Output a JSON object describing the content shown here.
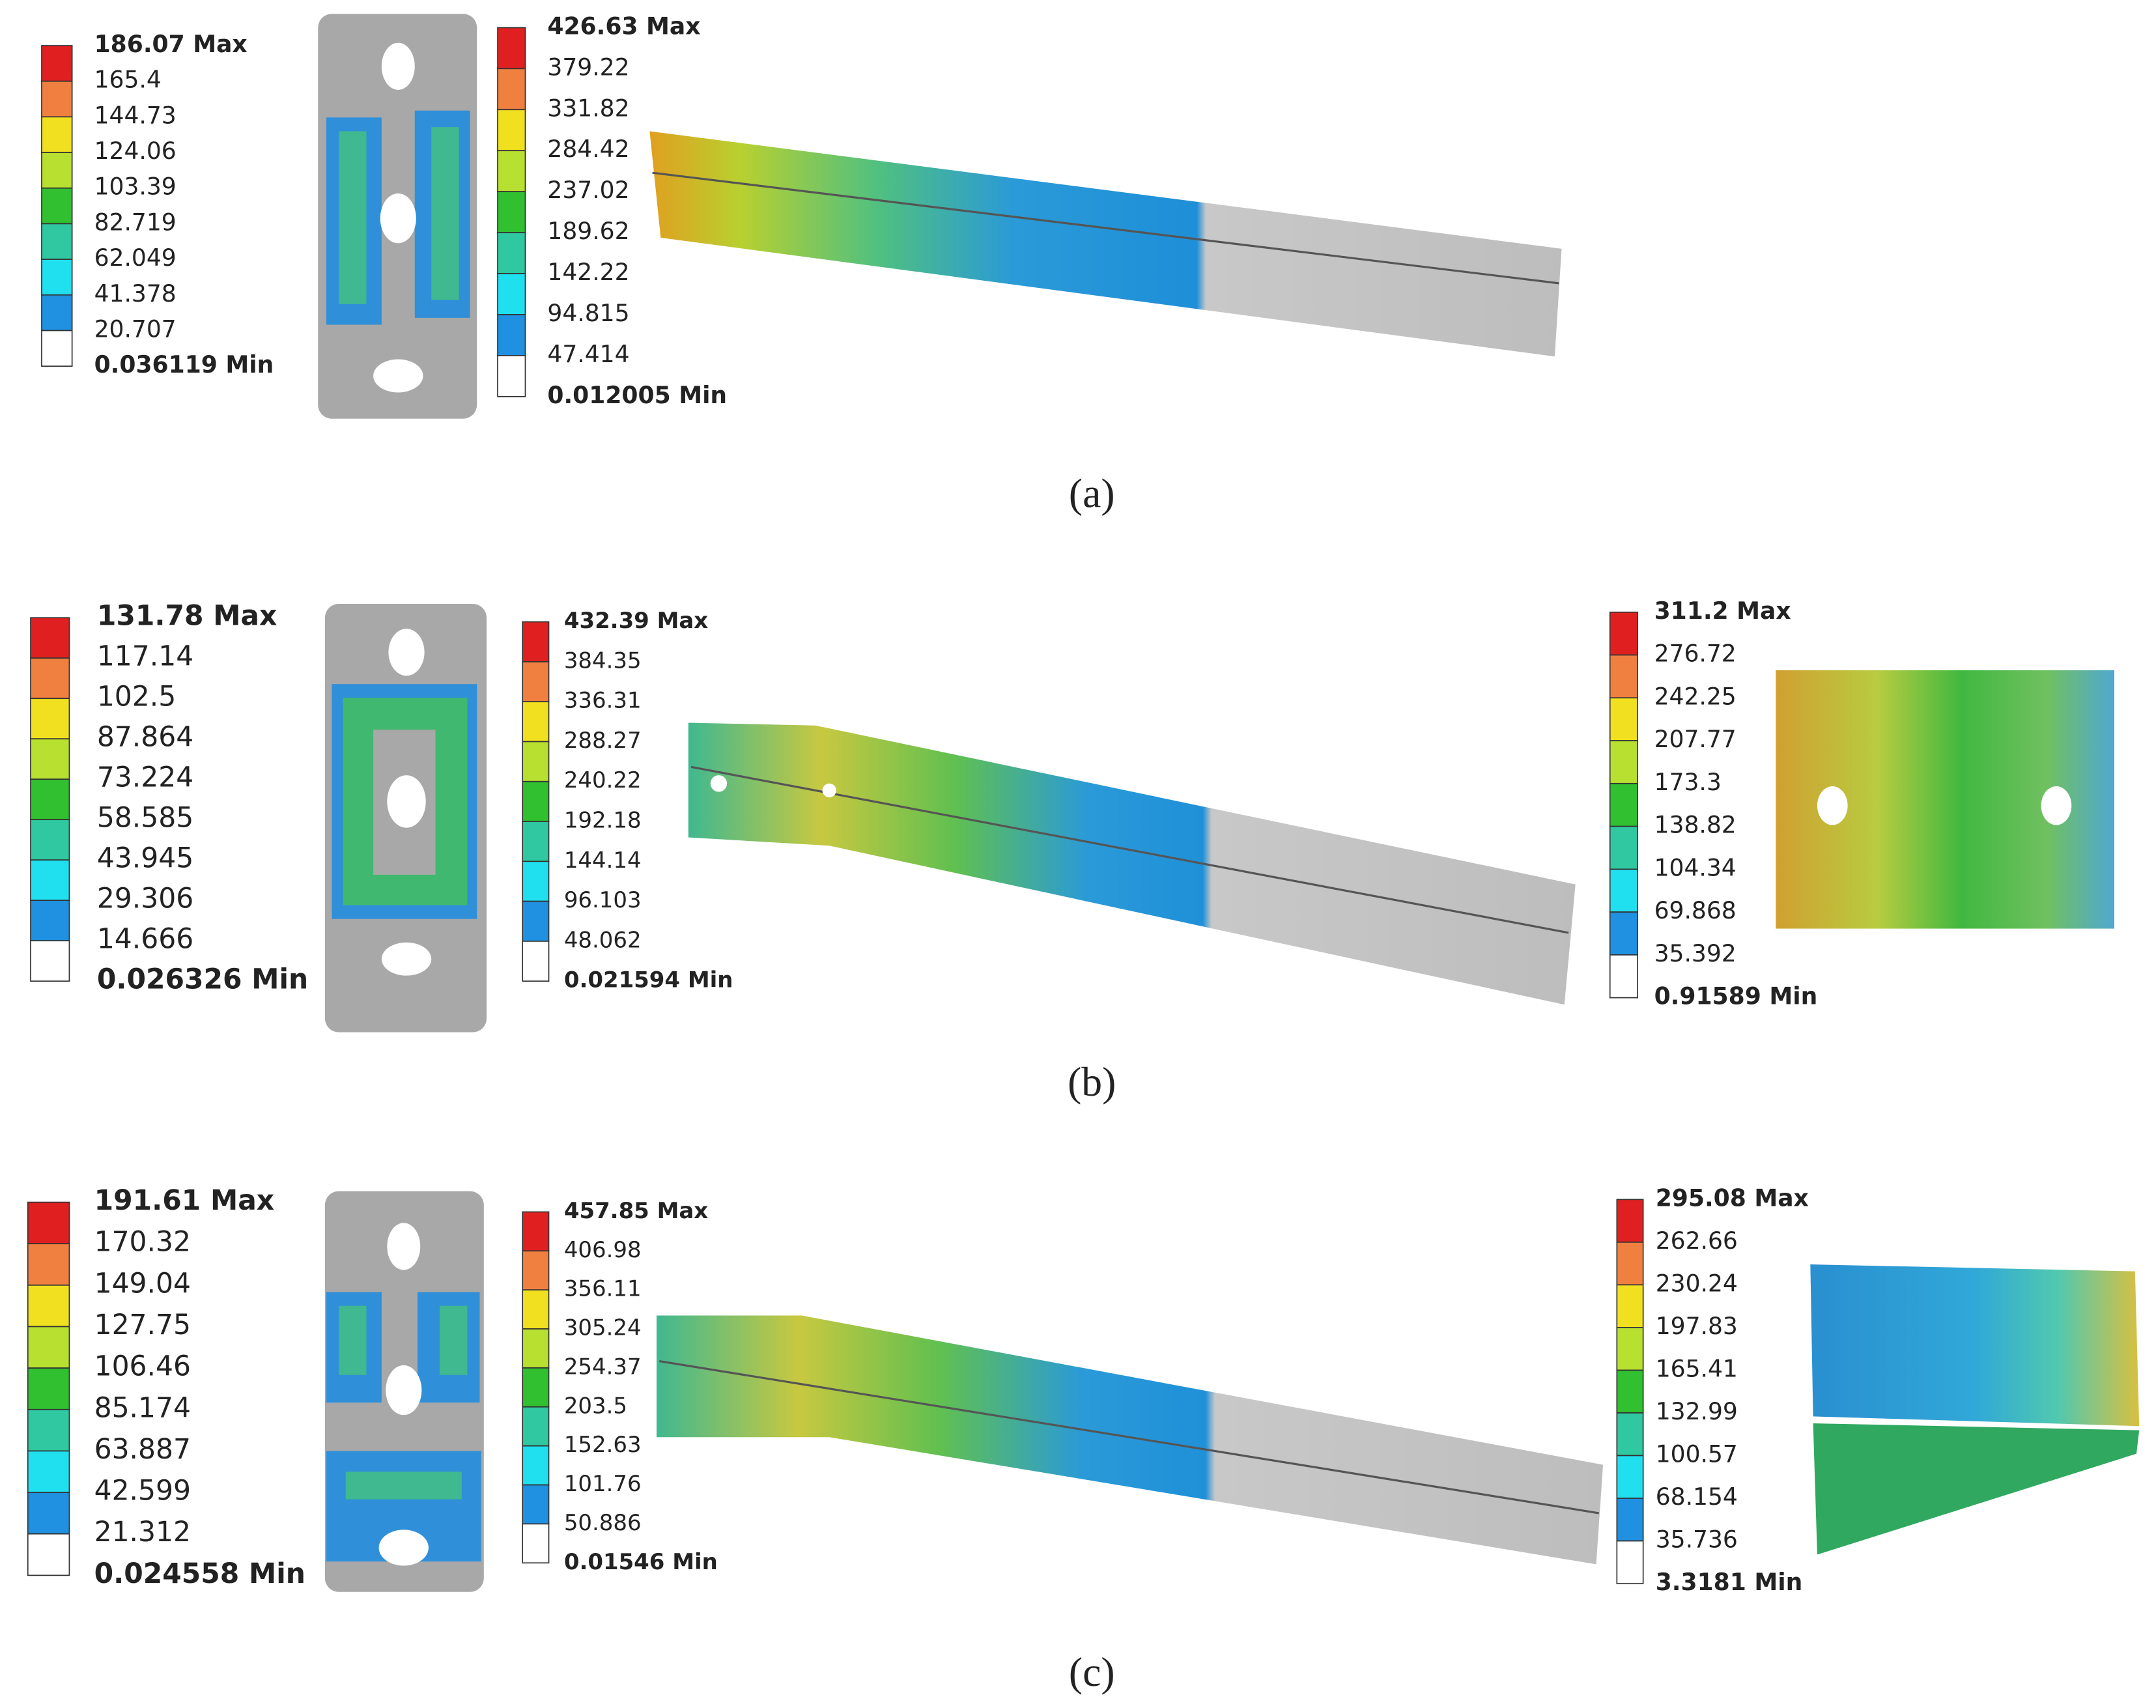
{
  "panels": [
    {
      "caption": "(a)",
      "legends": [
        {
          "labels": [
            "186.07 Max",
            "165.4",
            "144.73",
            "124.06",
            "103.39",
            "82.719",
            "62.049",
            "41.378",
            "20.707",
            "0.036119 Min"
          ]
        },
        {
          "labels": [
            "426.63 Max",
            "379.22",
            "331.82",
            "284.42",
            "237.02",
            "189.62",
            "142.22",
            "94.815",
            "47.414",
            "0.012005 Min"
          ]
        }
      ]
    },
    {
      "caption": "(b)",
      "legends": [
        {
          "labels": [
            "131.78 Max",
            "117.14",
            "102.5",
            "87.864",
            "73.224",
            "58.585",
            "43.945",
            "29.306",
            "14.666",
            "0.026326 Min"
          ]
        },
        {
          "labels": [
            "432.39 Max",
            "384.35",
            "336.31",
            "288.27",
            "240.22",
            "192.18",
            "144.14",
            "96.103",
            "48.062",
            "0.021594 Min"
          ]
        },
        {
          "labels": [
            "311.2 Max",
            "276.72",
            "242.25",
            "207.77",
            "173.3",
            "138.82",
            "104.34",
            "69.868",
            "35.392",
            "0.91589 Min"
          ]
        }
      ]
    },
    {
      "caption": "(c)",
      "legends": [
        {
          "labels": [
            "191.61 Max",
            "170.32",
            "149.04",
            "127.75",
            "106.46",
            "85.174",
            "63.887",
            "42.599",
            "21.312",
            "0.024558 Min"
          ]
        },
        {
          "labels": [
            "457.85 Max",
            "406.98",
            "356.11",
            "305.24",
            "254.37",
            "203.5",
            "152.63",
            "101.76",
            "50.886",
            "0.01546 Min"
          ]
        },
        {
          "labels": [
            "295.08 Max",
            "262.66",
            "230.24",
            "197.83",
            "165.41",
            "132.99",
            "100.57",
            "68.154",
            "35.736",
            "3.3181 Min"
          ]
        }
      ]
    }
  ]
}
